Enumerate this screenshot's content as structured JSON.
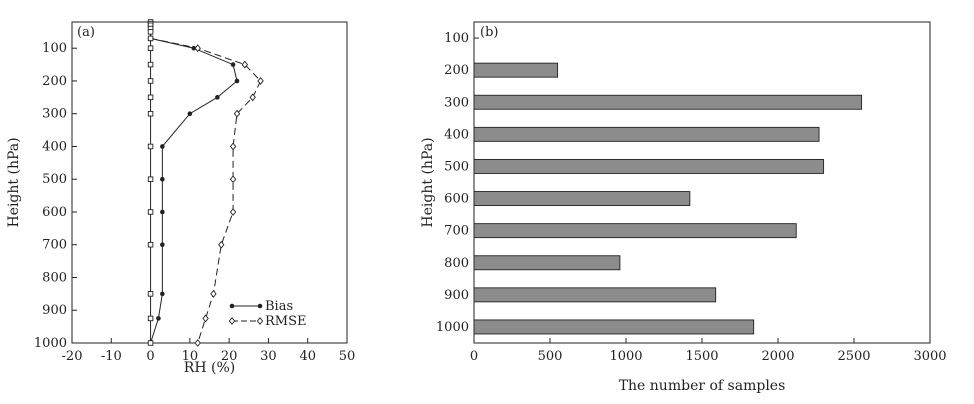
{
  "chart_data": [
    {
      "type": "line",
      "panel_label": "(a)",
      "xlabel": "RH (%)",
      "ylabel": "Height (hPa)",
      "xlim": [
        -20,
        50
      ],
      "ylim": [
        1000,
        20
      ],
      "xticks": [
        -20,
        -10,
        0,
        10,
        20,
        30,
        40,
        50
      ],
      "yticks": [
        100,
        200,
        300,
        400,
        500,
        600,
        700,
        800,
        900,
        1000
      ],
      "grid": false,
      "legend": "bottom-right",
      "series": [
        {
          "name": "Bias",
          "color": "#222222",
          "line": "solid",
          "marker": "filled-dot",
          "points": [
            [
              0,
              70
            ],
            [
              11,
              100
            ],
            [
              21,
              150
            ],
            [
              22,
              200
            ],
            [
              17,
              250
            ],
            [
              10,
              300
            ],
            [
              3,
              400
            ],
            [
              3,
              500
            ],
            [
              3,
              600
            ],
            [
              3,
              700
            ],
            [
              3,
              850
            ],
            [
              2,
              925
            ],
            [
              0,
              1000
            ]
          ]
        },
        {
          "name": "RMSE",
          "color": "#222222",
          "line": "dashed",
          "marker": "open-diamond",
          "points": [
            [
              0,
              70
            ],
            [
              12,
              100
            ],
            [
              24,
              150
            ],
            [
              28,
              200
            ],
            [
              26,
              250
            ],
            [
              22,
              300
            ],
            [
              21,
              400
            ],
            [
              21,
              500
            ],
            [
              21,
              600
            ],
            [
              18,
              700
            ],
            [
              16,
              850
            ],
            [
              14,
              925
            ],
            [
              12,
              1000
            ]
          ]
        },
        {
          "name": "",
          "color": "#222222",
          "line": "solid",
          "marker": "open-square",
          "points": [
            [
              0,
              20
            ],
            [
              0,
              25
            ],
            [
              0,
              30
            ],
            [
              0,
              40
            ],
            [
              0,
              50
            ],
            [
              0,
              70
            ],
            [
              0,
              100
            ],
            [
              0,
              150
            ],
            [
              0,
              200
            ],
            [
              0,
              250
            ],
            [
              0,
              300
            ],
            [
              0,
              400
            ],
            [
              0,
              500
            ],
            [
              0,
              600
            ],
            [
              0,
              700
            ],
            [
              0,
              850
            ],
            [
              0,
              925
            ],
            [
              0,
              1000
            ]
          ]
        }
      ]
    },
    {
      "type": "bar",
      "orientation": "horizontal",
      "panel_label": "(b)",
      "xlabel": "The number of samples",
      "ylabel": "Height (hPa)",
      "xlim": [
        0,
        3000
      ],
      "xticks": [
        0,
        500,
        1000,
        1500,
        2000,
        2500,
        3000
      ],
      "categories": [
        "100",
        "200",
        "300",
        "400",
        "500",
        "600",
        "700",
        "800",
        "900",
        "1000"
      ],
      "values": [
        0,
        550,
        2550,
        2270,
        2300,
        1420,
        2120,
        960,
        1590,
        1840
      ],
      "bar_color": "#8c8c8c",
      "grid": false
    }
  ]
}
